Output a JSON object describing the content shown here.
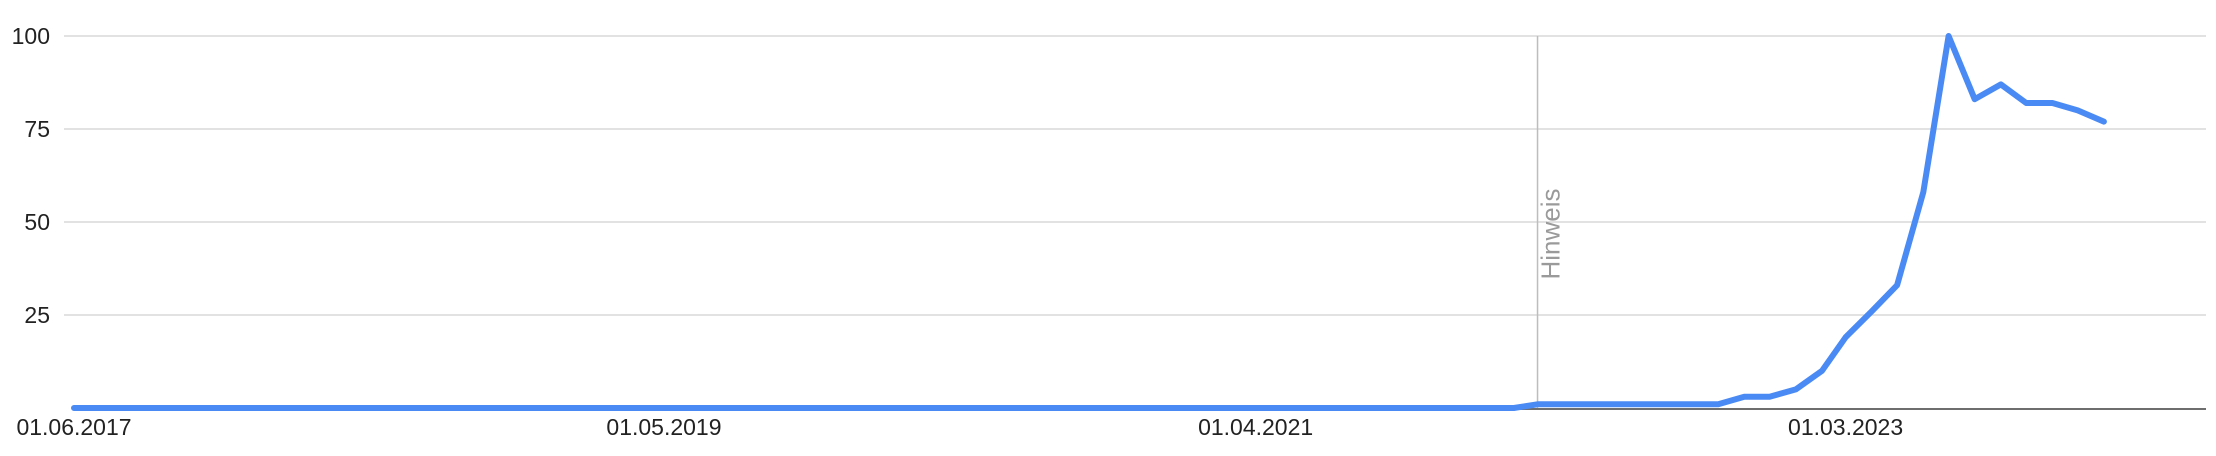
{
  "chart_data": {
    "type": "line",
    "title": "",
    "xlabel": "",
    "ylabel": "",
    "ylim": [
      0,
      100
    ],
    "grid": true,
    "legend": "none",
    "colors": {
      "line": "#4a8af4",
      "grid": "#d9d9d9",
      "axis": "#6e6e6e",
      "annotation": "#bdbdbd"
    },
    "y_ticks": [
      {
        "value": 25,
        "label": "25"
      },
      {
        "value": 50,
        "label": "50"
      },
      {
        "value": 75,
        "label": "75"
      },
      {
        "value": 100,
        "label": "100"
      }
    ],
    "x_ticks": [
      {
        "date": "2017-06-01",
        "label": "01.06.2017"
      },
      {
        "date": "2019-05-01",
        "label": "01.05.2019"
      },
      {
        "date": "2021-04-01",
        "label": "01.04.2021"
      },
      {
        "date": "2023-03-01",
        "label": "01.03.2023"
      }
    ],
    "annotation": {
      "date": "2022-03-01",
      "label": "Hinweis"
    },
    "x_domain": [
      "2017-06-01",
      "2024-05-01"
    ],
    "series": [
      {
        "points": [
          [
            "2017-06-01",
            0
          ],
          [
            "2022-02-01",
            0
          ],
          [
            "2022-03-01",
            1
          ],
          [
            "2022-04-01",
            1
          ],
          [
            "2022-05-01",
            1
          ],
          [
            "2022-06-01",
            1
          ],
          [
            "2022-07-01",
            1
          ],
          [
            "2022-08-01",
            1
          ],
          [
            "2022-09-01",
            1
          ],
          [
            "2022-10-01",
            1
          ],
          [
            "2022-11-01",
            3
          ],
          [
            "2022-12-01",
            3
          ],
          [
            "2023-01-01",
            5
          ],
          [
            "2023-02-01",
            10
          ],
          [
            "2023-03-01",
            19
          ],
          [
            "2023-04-01",
            26
          ],
          [
            "2023-05-01",
            33
          ],
          [
            "2023-06-01",
            58
          ],
          [
            "2023-07-01",
            100
          ],
          [
            "2023-08-01",
            83
          ],
          [
            "2023-09-01",
            87
          ],
          [
            "2023-10-01",
            82
          ],
          [
            "2023-11-01",
            82
          ],
          [
            "2023-12-01",
            80
          ],
          [
            "2024-01-01",
            77
          ]
        ]
      }
    ]
  }
}
